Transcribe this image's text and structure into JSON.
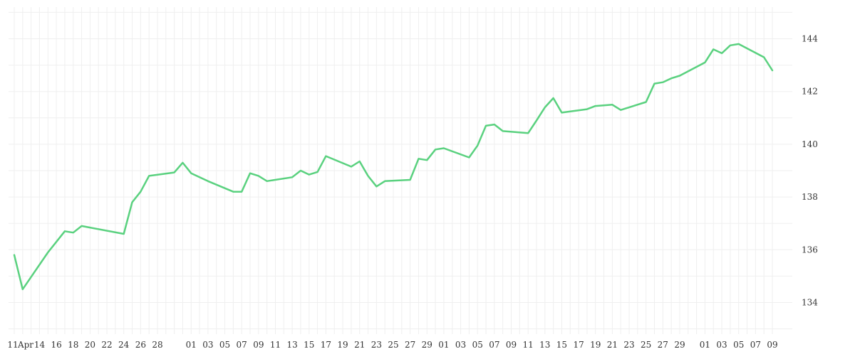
{
  "chart_data": {
    "type": "line",
    "title": "",
    "xlabel": "",
    "ylabel": "",
    "y_axis_position": "right",
    "grid": true,
    "ylim": [
      132.8,
      145.2
    ],
    "y_ticks": [
      134,
      136,
      138,
      140,
      142,
      144
    ],
    "x_tick_labels": [
      "11",
      "Apr",
      "14",
      "16",
      "18",
      "20",
      "22",
      "24",
      "26",
      "28",
      "01",
      "03",
      "05",
      "07",
      "09",
      "11",
      "13",
      "15",
      "17",
      "19",
      "21",
      "23",
      "25",
      "27",
      "29",
      "01",
      "03",
      "05",
      "07",
      "09",
      "11",
      "13",
      "15",
      "17",
      "19",
      "21",
      "23",
      "25",
      "27",
      "29",
      "01",
      "03",
      "05",
      "07",
      "09"
    ],
    "colors": {
      "line": "#5ad17f",
      "grid": "#efefef",
      "text": "#333333"
    },
    "series": [
      {
        "values": [
          [
            "2024-03-11",
            135.8
          ],
          [
            "2024-03-12",
            134.5
          ],
          [
            "2024-03-15",
            135.9
          ],
          [
            "2024-03-16",
            136.3
          ],
          [
            "2024-03-17",
            136.7
          ],
          [
            "2024-03-18",
            136.65
          ],
          [
            "2024-03-19",
            136.9
          ],
          [
            "2024-03-24",
            136.6
          ],
          [
            "2024-03-25",
            137.8
          ],
          [
            "2024-03-26",
            138.2
          ],
          [
            "2024-03-27",
            138.8
          ],
          [
            "2024-03-30",
            138.93
          ],
          [
            "2024-03-31",
            139.3
          ],
          [
            "2024-04-01",
            138.9
          ],
          [
            "2024-04-03",
            138.6
          ],
          [
            "2024-04-06",
            138.2
          ],
          [
            "2024-04-07",
            138.2
          ],
          [
            "2024-04-08",
            138.9
          ],
          [
            "2024-04-09",
            138.8
          ],
          [
            "2024-04-10",
            138.6
          ],
          [
            "2024-04-13",
            138.75
          ],
          [
            "2024-04-14",
            139.0
          ],
          [
            "2024-04-15",
            138.85
          ],
          [
            "2024-04-16",
            138.95
          ],
          [
            "2024-04-17",
            139.55
          ],
          [
            "2024-04-20",
            139.15
          ],
          [
            "2024-04-21",
            139.35
          ],
          [
            "2024-04-22",
            138.8
          ],
          [
            "2024-04-23",
            138.4
          ],
          [
            "2024-04-24",
            138.6
          ],
          [
            "2024-04-27",
            138.65
          ],
          [
            "2024-04-28",
            139.45
          ],
          [
            "2024-04-29",
            139.4
          ],
          [
            "2024-04-30",
            139.8
          ],
          [
            "2024-05-01",
            139.85
          ],
          [
            "2024-05-04",
            139.5
          ],
          [
            "2024-05-05",
            139.95
          ],
          [
            "2024-05-06",
            140.7
          ],
          [
            "2024-05-07",
            140.75
          ],
          [
            "2024-05-08",
            140.5
          ],
          [
            "2024-05-11",
            140.42
          ],
          [
            "2024-05-12",
            140.9
          ],
          [
            "2024-05-13",
            141.4
          ],
          [
            "2024-05-14",
            141.75
          ],
          [
            "2024-05-15",
            141.2
          ],
          [
            "2024-05-18",
            141.33
          ],
          [
            "2024-05-19",
            141.45
          ],
          [
            "2024-05-21",
            141.5
          ],
          [
            "2024-05-22",
            141.3
          ],
          [
            "2024-05-25",
            141.6
          ],
          [
            "2024-05-26",
            142.3
          ],
          [
            "2024-05-27",
            142.35
          ],
          [
            "2024-05-28",
            142.5
          ],
          [
            "2024-05-29",
            142.6
          ],
          [
            "2024-06-01",
            143.1
          ],
          [
            "2024-06-02",
            143.6
          ],
          [
            "2024-06-03",
            143.45
          ],
          [
            "2024-06-04",
            143.75
          ],
          [
            "2024-06-05",
            143.8
          ],
          [
            "2024-06-08",
            143.3
          ],
          [
            "2024-06-09",
            142.8
          ]
        ]
      }
    ]
  }
}
